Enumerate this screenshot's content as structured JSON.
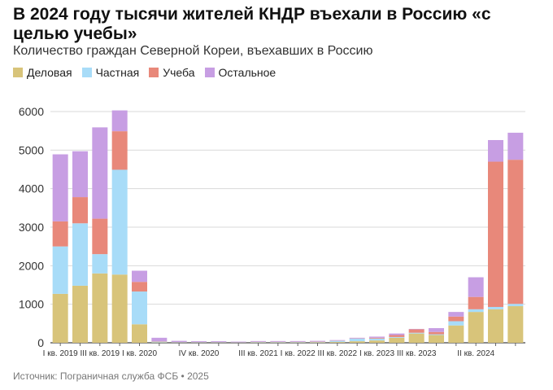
{
  "title": "В 2024 году тысячи жителей КНДР въехали в Россию «с целью учебы»",
  "subtitle": "Количество граждан Северной Кореи, въехавших в Россию",
  "source": "Источник: Пограничная служба ФСБ • 2025",
  "colors": {
    "Деловая": "#d8c47a",
    "Частная": "#a8dcf8",
    "Учеба": "#e8887a",
    "Остальное": "#c79ee3"
  },
  "chart_data": {
    "type": "bar",
    "stacked": true,
    "categories": [
      "I кв. 2019",
      "II кв. 2019",
      "III кв. 2019",
      "IV кв. 2019",
      "I кв. 2020",
      "II кв. 2020",
      "III кв. 2020",
      "IV кв. 2020",
      "I кв. 2021",
      "II кв. 2021",
      "III кв. 2021",
      "IV кв. 2021",
      "I кв. 2022",
      "II кв. 2022",
      "III кв. 2022",
      "IV кв. 2022",
      "I кв. 2023",
      "II кв. 2023",
      "III кв. 2023",
      "IV кв. 2023",
      "I кв. 2024",
      "II кв. 2024",
      "III кв. 2024",
      "IV кв. 2024"
    ],
    "tick_labels": [
      "I кв. 2019",
      "III кв. 2019",
      "I кв. 2020",
      "IV кв. 2020",
      "III кв. 2021",
      "I кв. 2022",
      "III кв. 2022",
      "I кв. 2023",
      "III кв. 2023",
      "II кв. 2024"
    ],
    "series": [
      {
        "name": "Деловая",
        "values": [
          1270,
          1480,
          1800,
          1770,
          480,
          10,
          5,
          5,
          5,
          5,
          10,
          10,
          10,
          15,
          20,
          40,
          60,
          130,
          240,
          200,
          450,
          800,
          870,
          950
        ]
      },
      {
        "name": "Частная",
        "values": [
          1230,
          1620,
          500,
          2720,
          850,
          20,
          10,
          10,
          10,
          5,
          10,
          10,
          10,
          10,
          30,
          70,
          50,
          20,
          20,
          20,
          110,
          70,
          60,
          60
        ]
      },
      {
        "name": "Учеба",
        "values": [
          650,
          680,
          920,
          1000,
          250,
          10,
          5,
          5,
          5,
          5,
          5,
          5,
          5,
          5,
          5,
          5,
          20,
          50,
          90,
          60,
          120,
          320,
          3770,
          3740
        ]
      },
      {
        "name": "Остальное",
        "values": [
          1740,
          1190,
          2370,
          540,
          290,
          90,
          30,
          20,
          20,
          15,
          20,
          20,
          20,
          20,
          15,
          15,
          30,
          40,
          10,
          100,
          120,
          510,
          560,
          700
        ]
      }
    ],
    "ylim": [
      0,
      6000
    ],
    "yticks": [
      0,
      1000,
      2000,
      3000,
      4000,
      5000,
      6000
    ],
    "grid": true,
    "legend_position": "top-left"
  }
}
